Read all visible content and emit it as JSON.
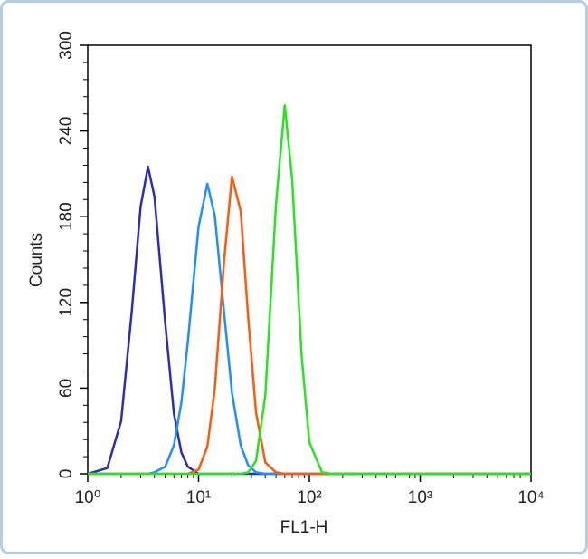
{
  "chart_data": {
    "type": "line",
    "xlabel": "FL1-H",
    "ylabel": "Counts",
    "xscale": "log",
    "x": [
      1,
      1.5,
      2,
      2.5,
      3,
      3.5,
      4,
      5,
      6,
      7,
      8,
      10,
      12,
      14,
      17,
      20,
      24,
      28,
      33,
      40,
      50,
      60,
      70,
      85,
      100,
      130,
      160,
      200,
      300,
      1000,
      10000
    ],
    "series": [
      {
        "color": "#2c2cb8",
        "values": [
          0,
          4,
          37,
          114,
          187,
          215,
          194,
          106,
          42,
          15,
          5,
          0,
          0,
          0,
          0,
          0,
          0,
          0,
          0,
          0,
          0,
          0,
          0,
          0,
          0,
          0,
          0,
          0,
          0,
          0,
          0
        ]
      },
      {
        "color": "#1e8fff",
        "values": [
          0,
          0,
          0,
          0,
          0,
          0,
          1,
          5,
          20,
          50,
          92,
          173,
          203,
          181,
          113,
          57,
          20,
          6,
          1,
          0,
          0,
          0,
          0,
          0,
          0,
          0,
          0,
          0,
          0,
          0,
          0
        ]
      },
      {
        "color": "#ff5a0a",
        "values": [
          0,
          0,
          0,
          0,
          0,
          0,
          0,
          0,
          0,
          0,
          0,
          3,
          19,
          59,
          149,
          208,
          184,
          110,
          43,
          8,
          1,
          0,
          0,
          0,
          0,
          0,
          0,
          0,
          0,
          0,
          0
        ]
      },
      {
        "color": "#24e61e",
        "values": [
          0,
          0,
          0,
          0,
          0,
          0,
          0,
          0,
          0,
          0,
          0,
          0,
          0,
          0,
          0,
          0,
          0,
          1,
          9,
          55,
          189,
          258,
          206,
          83,
          22,
          1,
          0,
          0,
          0,
          0,
          0
        ]
      }
    ],
    "xlim": [
      1,
      10000
    ],
    "xticks": [
      {
        "value": 1,
        "label": "10⁰"
      },
      {
        "value": 10,
        "label": "10¹"
      },
      {
        "value": 100,
        "label": "10²"
      },
      {
        "value": 1000,
        "label": "10³"
      },
      {
        "value": 10000,
        "label": "10⁴"
      }
    ],
    "ylim": [
      0,
      300
    ],
    "yticks": [
      0,
      60,
      120,
      180,
      240,
      300
    ]
  }
}
